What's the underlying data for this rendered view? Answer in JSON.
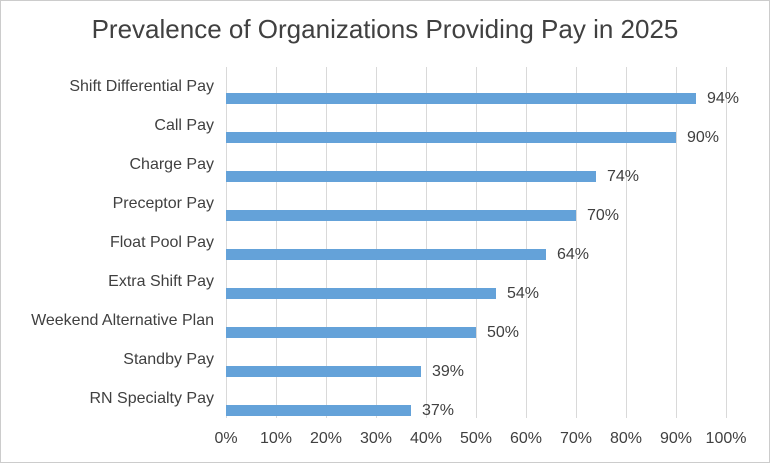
{
  "chart_data": {
    "type": "bar",
    "orientation": "horizontal",
    "title": "Prevalence of Organizations Providing Pay in 2025",
    "categories": [
      "Shift Differential Pay",
      "Call Pay",
      "Charge Pay",
      "Preceptor Pay",
      "Float Pool Pay",
      "Extra Shift Pay",
      "Weekend Alternative Plan",
      "Standby Pay",
      "RN Specialty Pay"
    ],
    "values": [
      94,
      90,
      74,
      70,
      64,
      54,
      50,
      39,
      37
    ],
    "data_labels": [
      "94%",
      "90%",
      "74%",
      "70%",
      "64%",
      "54%",
      "50%",
      "39%",
      "37%"
    ],
    "x_tick_labels": [
      "0%",
      "10%",
      "20%",
      "30%",
      "40%",
      "50%",
      "60%",
      "70%",
      "80%",
      "90%",
      "100%"
    ],
    "xlabel": "",
    "ylabel": "",
    "xlim": [
      0,
      100
    ],
    "grid": "vertical",
    "legend": "none",
    "data_label_position": "outside-end",
    "colors": {
      "bar": "#64A2D9",
      "grid": "#D9D9D9",
      "text": "#404040",
      "title": "#404040",
      "border": "#CCCCCC",
      "background": "#FFFFFF"
    }
  }
}
